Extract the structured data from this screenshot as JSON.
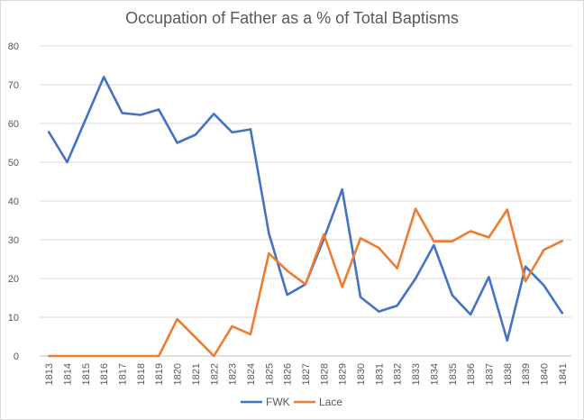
{
  "chart_data": {
    "type": "line",
    "title": "Occupation of Father as a % of Total Baptisms",
    "xlabel": "",
    "ylabel": "",
    "ylim": [
      0,
      80
    ],
    "yticks": [
      0,
      10,
      20,
      30,
      40,
      50,
      60,
      70,
      80
    ],
    "grid": true,
    "legend_position": "bottom",
    "categories": [
      "1813",
      "1814",
      "1815",
      "1816",
      "1817",
      "1818",
      "1819",
      "1820",
      "1821",
      "1822",
      "1823",
      "1824",
      "1825",
      "1826",
      "1827",
      "1828",
      "1829",
      "1830",
      "1831",
      "1832",
      "1833",
      "1834",
      "1835",
      "1836",
      "1837",
      "1838",
      "1839",
      "1840",
      "1841"
    ],
    "series": [
      {
        "name": "FWK",
        "color": "#4472c4",
        "values": [
          57.8,
          50,
          61,
          72,
          62.7,
          62.2,
          63.6,
          55,
          57.1,
          62.5,
          57.7,
          58.5,
          31.7,
          15.8,
          18.5,
          30.2,
          43,
          15.2,
          11.5,
          13,
          20,
          28.6,
          15.7,
          10.7,
          20.4,
          4,
          23.1,
          18.2,
          11.1
        ]
      },
      {
        "name": "Lace",
        "color": "#ed7d31",
        "values": [
          0,
          0,
          0,
          0,
          0,
          0,
          0,
          9.5,
          4.8,
          0,
          7.7,
          5.6,
          26.5,
          22,
          18.5,
          31.4,
          17.8,
          30.4,
          27.9,
          22.6,
          38,
          29.6,
          29.6,
          32.2,
          30.6,
          37.8,
          19.3,
          27.4,
          29.7
        ]
      }
    ]
  }
}
